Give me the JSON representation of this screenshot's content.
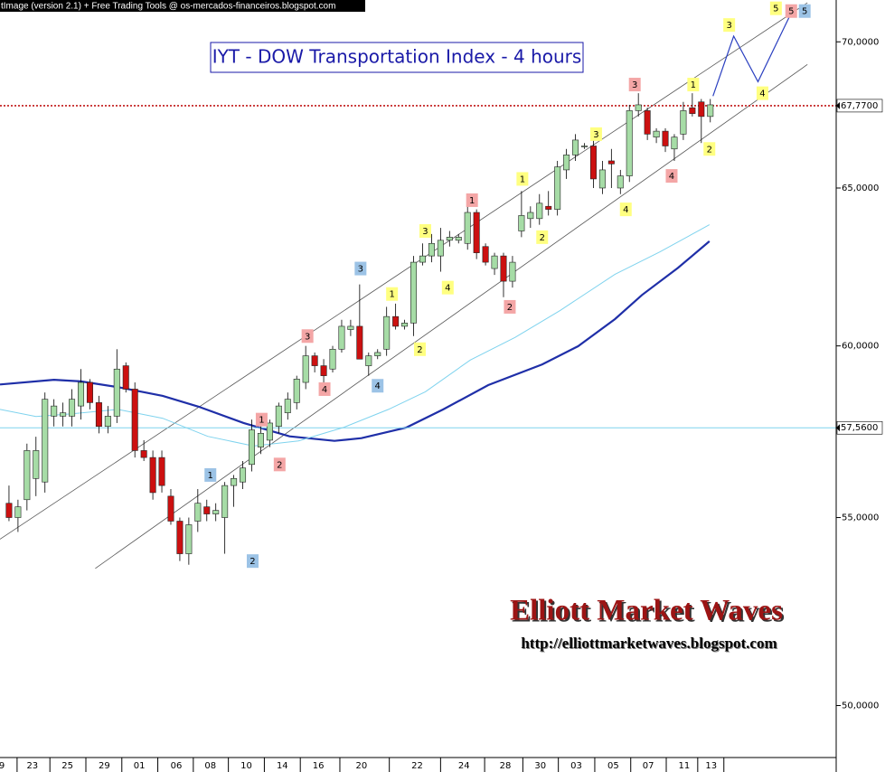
{
  "header": "tImage (version 2.1) + Free Trading Tools @ os-mercados-financeiros.blogspot.com",
  "chart_data": {
    "type": "candlestick",
    "title": "IYT - DOW Transportation Index - 4 hours",
    "log_scale": true,
    "up_color": "#a6dca6",
    "down_color": "#cc1010",
    "xlim": [
      -1,
      92
    ],
    "ylim": [
      48.7,
      71.5
    ],
    "yticks": [
      {
        "value": 50,
        "label": "50,0000"
      },
      {
        "value": 55,
        "label": "55,0000"
      },
      {
        "value": 60,
        "label": "60,0000"
      },
      {
        "value": 65,
        "label": "65,0000"
      },
      {
        "value": 70,
        "label": "70,0000"
      }
    ],
    "xticks": [
      {
        "value": -0.8,
        "label": "9"
      },
      {
        "value": 2.6,
        "label": "23"
      },
      {
        "value": 6.5,
        "label": "25"
      },
      {
        "value": 10.6,
        "label": "29"
      },
      {
        "value": 14.5,
        "label": "01"
      },
      {
        "value": 18.6,
        "label": "06"
      },
      {
        "value": 22.4,
        "label": "08"
      },
      {
        "value": 26.4,
        "label": "10"
      },
      {
        "value": 30.4,
        "label": "14"
      },
      {
        "value": 34.4,
        "label": "16"
      },
      {
        "value": 39.2,
        "label": "20"
      },
      {
        "value": 45.4,
        "label": "22"
      },
      {
        "value": 50.6,
        "label": "24"
      },
      {
        "value": 55.2,
        "label": "28"
      },
      {
        "value": 59.1,
        "label": "30"
      },
      {
        "value": 63.1,
        "label": "03"
      },
      {
        "value": 67.2,
        "label": "05"
      },
      {
        "value": 71.1,
        "label": "07"
      },
      {
        "value": 75.1,
        "label": "11"
      },
      {
        "value": 78.1,
        "label": "13"
      }
    ],
    "open": [
      55.4,
      55.0,
      55.5,
      56.1,
      56.0,
      57.9,
      57.9,
      57.9,
      58.2,
      58.9,
      58.3,
      57.6,
      57.9,
      59.4,
      58.7,
      56.9,
      56.7,
      56.7,
      55.6,
      54.9,
      54.0,
      54.9,
      55.3,
      55.1,
      55.0,
      55.9,
      56.0,
      56.5,
      57.0,
      57.2,
      57.6,
      58.0,
      58.3,
      58.9,
      59.7,
      59.4,
      59.3,
      59.9,
      60.5,
      60.6,
      59.4,
      59.7,
      59.9,
      60.9,
      60.6,
      60.7,
      62.6,
      62.8,
      62.8,
      63.3,
      63.3,
      63.2,
      64.2,
      63.1,
      62.4,
      62.8,
      62.0,
      63.6,
      64.0,
      64.0,
      64.4,
      64.3,
      65.6,
      66.1,
      66.4,
      66.4,
      65.0,
      65.9,
      65.0,
      65.4,
      67.6,
      67.6,
      66.7,
      66.9,
      66.3,
      66.8,
      67.7,
      67.9,
      67.4
    ],
    "high": [
      55.9,
      55.5,
      57.1,
      57.3,
      58.6,
      58.4,
      58.3,
      58.7,
      59.3,
      59.0,
      58.5,
      58.2,
      59.9,
      59.5,
      58.9,
      57.2,
      56.9,
      56.9,
      55.8,
      55.0,
      55.0,
      55.8,
      55.5,
      55.4,
      56.0,
      56.2,
      56.6,
      57.8,
      57.6,
      57.8,
      58.3,
      58.6,
      59.1,
      60.0,
      59.8,
      59.6,
      60.0,
      60.8,
      60.8,
      61.9,
      59.8,
      59.9,
      61.2,
      61.3,
      60.8,
      62.8,
      63.2,
      63.5,
      63.7,
      63.6,
      63.5,
      64.5,
      64.3,
      63.2,
      62.9,
      62.9,
      62.8,
      64.9,
      64.4,
      64.8,
      64.9,
      65.9,
      66.3,
      66.8,
      66.5,
      66.6,
      65.9,
      66.3,
      65.6,
      67.8,
      68.2,
      67.7,
      67.0,
      67.0,
      66.8,
      67.9,
      68.2,
      68.0,
      68.0
    ],
    "low": [
      54.9,
      54.6,
      55.2,
      55.6,
      55.7,
      57.6,
      57.6,
      57.6,
      57.8,
      58.1,
      57.4,
      57.4,
      57.7,
      58.6,
      56.7,
      56.6,
      55.5,
      55.7,
      54.8,
      53.8,
      53.7,
      54.6,
      54.9,
      54.9,
      54.0,
      55.3,
      55.8,
      56.3,
      56.8,
      57.0,
      57.4,
      57.8,
      58.1,
      58.7,
      59.2,
      58.9,
      59.2,
      59.8,
      60.3,
      59.6,
      59.1,
      59.6,
      59.7,
      60.5,
      60.5,
      60.3,
      62.5,
      62.6,
      62.3,
      63.1,
      63.2,
      63.0,
      62.7,
      62.5,
      62.2,
      61.5,
      61.8,
      63.4,
      63.7,
      63.8,
      64.1,
      64.1,
      65.3,
      65.9,
      66.3,
      65.0,
      64.8,
      65.0,
      64.8,
      65.2,
      67.4,
      66.6,
      66.5,
      66.2,
      65.9,
      66.6,
      67.4,
      66.5,
      67.2
    ],
    "close": [
      55.0,
      55.3,
      56.9,
      56.9,
      58.4,
      58.2,
      58.0,
      58.4,
      58.9,
      58.3,
      57.6,
      57.9,
      59.3,
      58.7,
      56.9,
      56.7,
      55.7,
      55.9,
      54.9,
      54.0,
      54.8,
      55.4,
      55.1,
      55.2,
      55.9,
      56.1,
      56.4,
      57.5,
      57.4,
      57.7,
      58.2,
      58.4,
      59.0,
      59.7,
      59.4,
      59.1,
      59.9,
      60.6,
      60.6,
      59.6,
      59.7,
      59.8,
      60.9,
      60.6,
      60.7,
      62.6,
      62.8,
      63.2,
      63.3,
      63.4,
      63.4,
      64.2,
      62.9,
      62.6,
      62.8,
      62.0,
      62.6,
      64.1,
      64.2,
      64.5,
      64.3,
      65.7,
      66.1,
      66.6,
      66.4,
      65.3,
      65.6,
      65.8,
      65.4,
      67.6,
      67.8,
      66.8,
      66.9,
      66.4,
      66.7,
      67.6,
      67.5,
      67.4,
      67.8
    ],
    "lines": [
      {
        "color": "#1f2fa8",
        "weight": "bold",
        "x": [
          -1,
          5.0,
          8.0,
          12.1,
          17.1,
          21.1,
          26.1,
          31.2,
          36.2,
          39.2,
          44.2,
          48.3,
          53.3,
          59.3,
          63.3,
          67.4,
          70.4,
          74.4,
          77.9
        ],
        "y": [
          58.84,
          58.98,
          58.93,
          58.76,
          58.5,
          58.18,
          57.7,
          57.31,
          57.18,
          57.26,
          57.57,
          58.1,
          58.82,
          59.44,
          59.99,
          60.82,
          61.57,
          62.42,
          63.27
        ]
      },
      {
        "color": "#7fd3ee",
        "weight": "normal",
        "x": [
          -1,
          3.0,
          7.0,
          12.1,
          17.1,
          22.1,
          27.2,
          32.2,
          37.2,
          42.2,
          46.3,
          51.3,
          56.3,
          61.3,
          67.4,
          72.4,
          77.9
        ],
        "y": [
          58.1,
          57.89,
          57.97,
          58.1,
          57.84,
          57.31,
          57.03,
          57.18,
          57.57,
          58.1,
          58.62,
          59.57,
          60.26,
          61.09,
          62.22,
          62.93,
          63.8
        ]
      }
    ],
    "trendlines": [
      {
        "color": "#555555",
        "x": [
          -1,
          88.8
        ],
        "y": [
          54.4,
          71.4
        ]
      },
      {
        "color": "#555555",
        "x": [
          9.6,
          88.8
        ],
        "y": [
          53.6,
          69.2
        ]
      }
    ],
    "levels": [
      {
        "value": 67.77,
        "label": "67,7700",
        "color": "#c01818",
        "style": "dotted"
      },
      {
        "value": 57.56,
        "label": "57,5600",
        "color": "#7fd3ee",
        "style": "solid"
      }
    ],
    "projection": {
      "color": "#2a3fc0",
      "x": [
        78.3,
        80.6,
        83.3,
        86.8
      ],
      "y": [
        68.1,
        70.2,
        68.6,
        70.9
      ]
    },
    "waves": [
      {
        "x": 22.4,
        "y": 56.2,
        "label": "1",
        "color": "#9cc3e6"
      },
      {
        "x": 27.1,
        "y": 53.8,
        "label": "2",
        "color": "#9cc3e6"
      },
      {
        "x": 28.1,
        "y": 57.8,
        "label": "1",
        "color": "#f4a6a6"
      },
      {
        "x": 30.1,
        "y": 56.5,
        "label": "2",
        "color": "#f4a6a6"
      },
      {
        "x": 33.2,
        "y": 60.3,
        "label": "3",
        "color": "#f4a6a6"
      },
      {
        "x": 35.1,
        "y": 58.7,
        "label": "4",
        "color": "#f4a6a6"
      },
      {
        "x": 39.1,
        "y": 62.4,
        "label": "3",
        "color": "#9cc3e6"
      },
      {
        "x": 41.0,
        "y": 58.8,
        "label": "4",
        "color": "#9cc3e6"
      },
      {
        "x": 42.6,
        "y": 61.6,
        "label": "1",
        "color": "#ffff80"
      },
      {
        "x": 45.7,
        "y": 59.9,
        "label": "2",
        "color": "#ffff80"
      },
      {
        "x": 46.3,
        "y": 63.6,
        "label": "3",
        "color": "#ffff80"
      },
      {
        "x": 48.8,
        "y": 61.8,
        "label": "4",
        "color": "#ffff80"
      },
      {
        "x": 51.5,
        "y": 64.6,
        "label": "1",
        "color": "#f4a6a6"
      },
      {
        "x": 55.7,
        "y": 61.2,
        "label": "2",
        "color": "#f4a6a6"
      },
      {
        "x": 57.1,
        "y": 65.3,
        "label": "1",
        "color": "#ffff80"
      },
      {
        "x": 59.3,
        "y": 63.4,
        "label": "2",
        "color": "#ffff80"
      },
      {
        "x": 65.3,
        "y": 66.8,
        "label": "3",
        "color": "#ffff80"
      },
      {
        "x": 68.6,
        "y": 64.3,
        "label": "4",
        "color": "#ffff80"
      },
      {
        "x": 69.6,
        "y": 68.5,
        "label": "3",
        "color": "#f4a6a6"
      },
      {
        "x": 73.7,
        "y": 65.4,
        "label": "4",
        "color": "#f4a6a6"
      },
      {
        "x": 76.1,
        "y": 68.5,
        "label": "1",
        "color": "#ffff80"
      },
      {
        "x": 77.9,
        "y": 66.3,
        "label": "2",
        "color": "#ffff80"
      },
      {
        "x": 80.1,
        "y": 70.6,
        "label": "3",
        "color": "#ffff80"
      },
      {
        "x": 83.8,
        "y": 68.2,
        "label": "4",
        "color": "#ffff80"
      },
      {
        "x": 85.3,
        "y": 71.2,
        "label": "5",
        "color": "#ffff80"
      },
      {
        "x": 87.0,
        "y": 71.1,
        "label": "5",
        "color": "#f4a6a6"
      },
      {
        "x": 88.5,
        "y": 71.1,
        "label": "5",
        "color": "#9cc3e6"
      }
    ]
  },
  "watermark": {
    "title": "Elliott Market Waves",
    "url": "http://elliottmarketwaves.blogspot.com"
  }
}
